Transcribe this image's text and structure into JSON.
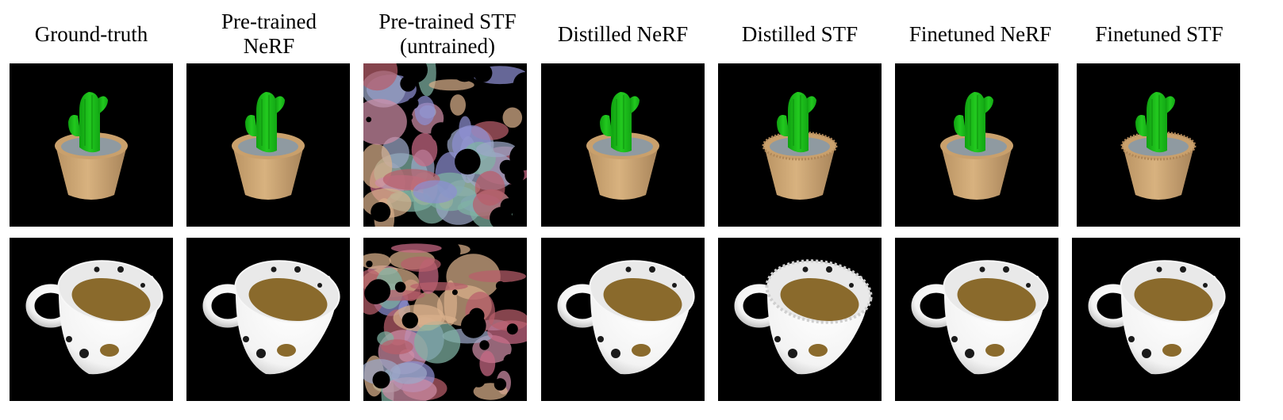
{
  "figure": {
    "columns": [
      {
        "id": "gt",
        "title": "Ground-truth"
      },
      {
        "id": "ptnerf",
        "title": "Pre-trained\nNeRF"
      },
      {
        "id": "ptstf",
        "title": "Pre-trained STF\n(untrained)"
      },
      {
        "id": "dnerf",
        "title": "Distilled NeRF"
      },
      {
        "id": "dstf",
        "title": "Distilled STF"
      },
      {
        "id": "fnerf",
        "title": "Finetuned NeRF"
      },
      {
        "id": "fstf",
        "title": "Finetuned STF"
      }
    ],
    "rows": [
      {
        "id": "cactus",
        "subject": "potted cactus render"
      },
      {
        "id": "cup",
        "subject": "perforated cup render"
      }
    ],
    "colors": {
      "background": "#000000",
      "cactus_green": "#22c91f",
      "pot_tan": "#d8b27f",
      "soil_gray": "#8f9aa1",
      "cup_white": "#f3f3f3",
      "coffee_brown": "#8a6a2c"
    }
  }
}
